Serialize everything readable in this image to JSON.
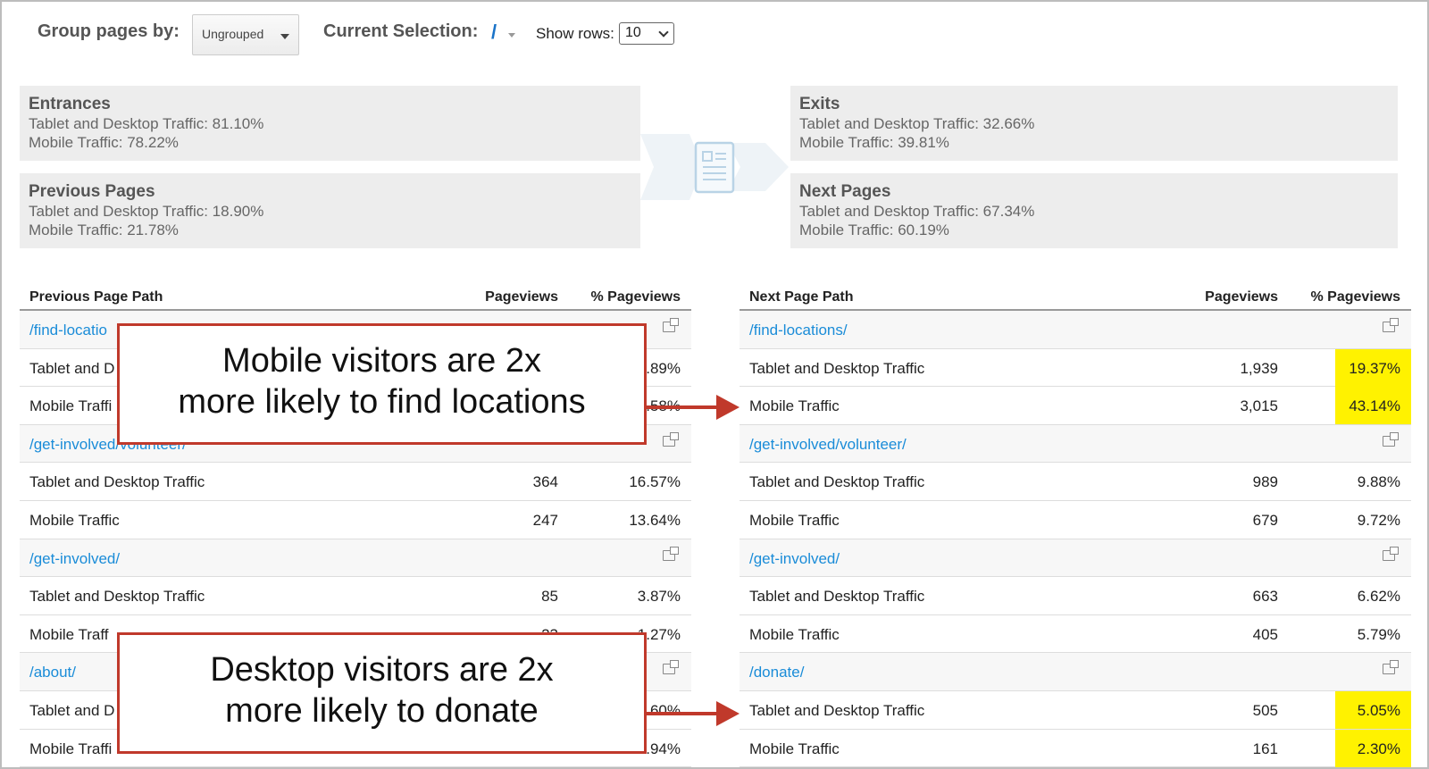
{
  "controls": {
    "group_label": "Group pages by:",
    "group_value": "Ungrouped",
    "selection_label": "Current Selection:",
    "selection_value": "/",
    "rows_label": "Show rows:",
    "rows_value": "10"
  },
  "summary": {
    "entrances": {
      "title": "Entrances",
      "line1": "Tablet and Desktop Traffic: 81.10%",
      "line2": "Mobile Traffic: 78.22%"
    },
    "previous": {
      "title": "Previous Pages",
      "line1": "Tablet and Desktop Traffic: 18.90%",
      "line2": "Mobile Traffic: 21.78%"
    },
    "exits": {
      "title": "Exits",
      "line1": "Tablet and Desktop Traffic: 32.66%",
      "line2": "Mobile Traffic: 39.81%"
    },
    "next": {
      "title": "Next Pages",
      "line1": "Tablet and Desktop Traffic: 67.34%",
      "line2": "Mobile Traffic: 60.19%"
    }
  },
  "prev_table": {
    "col_path": "Previous Page Path",
    "col_pv": "Pageviews",
    "col_pct": "% Pageviews",
    "rows": [
      {
        "path": "/find-locatio"
      },
      {
        "label": "Tablet and D",
        "pv": "",
        "pct": ".89%"
      },
      {
        "label": "Mobile Traffi",
        "pv": "",
        "pct": ".58%"
      },
      {
        "path": "/get-involved/volunteer/"
      },
      {
        "label": "Tablet and Desktop Traffic",
        "pv": "364",
        "pct": "16.57%"
      },
      {
        "label": "Mobile Traffic",
        "pv": "247",
        "pct": "13.64%"
      },
      {
        "path": "/get-involved/"
      },
      {
        "label": "Tablet and Desktop Traffic",
        "pv": "85",
        "pct": "3.87%"
      },
      {
        "label": "Mobile Traff",
        "pv": "23",
        "pct": "1.27%"
      },
      {
        "path": "/about/"
      },
      {
        "label": "Tablet and D",
        "pv": "",
        "pct": ".60%"
      },
      {
        "label": "Mobile Traffi",
        "pv": "",
        "pct": ".94%"
      }
    ]
  },
  "next_table": {
    "col_path": "Next Page Path",
    "col_pv": "Pageviews",
    "col_pct": "% Pageviews",
    "rows": [
      {
        "path": "/find-locations/"
      },
      {
        "label": "Tablet and Desktop Traffic",
        "pv": "1,939",
        "pct": "19.37%",
        "hl": true
      },
      {
        "label": "Mobile Traffic",
        "pv": "3,015",
        "pct": "43.14%",
        "hl": true
      },
      {
        "path": "/get-involved/volunteer/"
      },
      {
        "label": "Tablet and Desktop Traffic",
        "pv": "989",
        "pct": "9.88%"
      },
      {
        "label": "Mobile Traffic",
        "pv": "679",
        "pct": "9.72%"
      },
      {
        "path": "/get-involved/"
      },
      {
        "label": "Tablet and Desktop Traffic",
        "pv": "663",
        "pct": "6.62%"
      },
      {
        "label": "Mobile Traffic",
        "pv": "405",
        "pct": "5.79%"
      },
      {
        "path": "/donate/"
      },
      {
        "label": "Tablet and Desktop Traffic",
        "pv": "505",
        "pct": "5.05%",
        "hl": true
      },
      {
        "label": "Mobile Traffic",
        "pv": "161",
        "pct": "2.30%",
        "hl": true
      }
    ]
  },
  "callouts": {
    "top_line1": "Mobile visitors are 2x",
    "top_line2": "more likely to find locations",
    "bottom_line1": "Desktop visitors are 2x",
    "bottom_line2": "more likely to donate"
  },
  "colors": {
    "link": "#1a8cd8",
    "highlight": "#fff200",
    "callout_border": "#c0392b"
  },
  "icons": {
    "page": "page-icon",
    "popout": "popout-icon"
  }
}
